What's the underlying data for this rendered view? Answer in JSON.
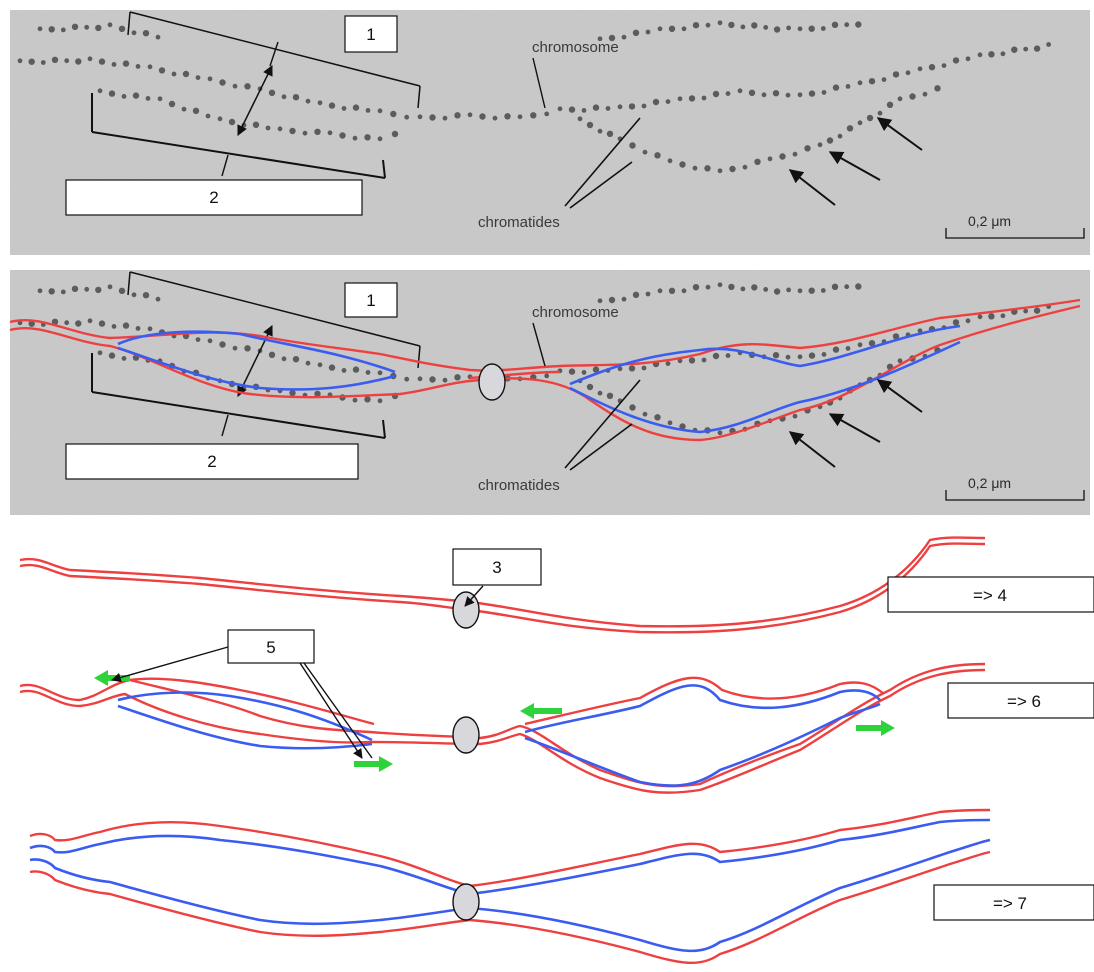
{
  "micrograph": {
    "chromosome_label": "chromosome",
    "chromatids_label": "chromatides",
    "scale_label": "0,2 μm"
  },
  "labels": {
    "box1": "1",
    "box2": "2",
    "box3": "3",
    "box4": "=> 4",
    "box5": "5",
    "box6": "=> 6",
    "box7": "=> 7"
  },
  "colors": {
    "chromosome_outline": "#ee4040",
    "chromatid_outline": "#3a5cf0",
    "direction_arrow": "#2ed23a",
    "centromere": "#d8d8dc"
  }
}
